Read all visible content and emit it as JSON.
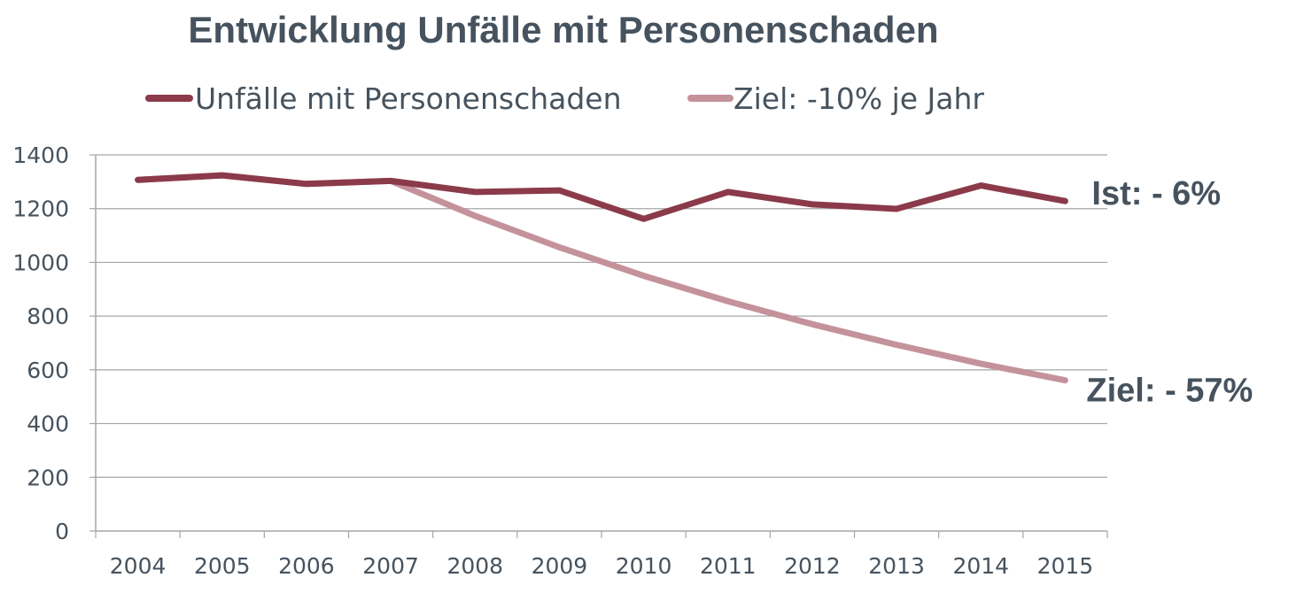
{
  "chart_data": {
    "type": "line",
    "title": "Entwicklung Unfälle mit Personenschaden",
    "xlabel": "",
    "ylabel": "",
    "categories": [
      "2004",
      "2005",
      "2006",
      "2007",
      "2008",
      "2009",
      "2010",
      "2011",
      "2012",
      "2013",
      "2014",
      "2015"
    ],
    "ylim": [
      0,
      1400
    ],
    "yticks": [
      0,
      200,
      400,
      600,
      800,
      1000,
      1200,
      1400
    ],
    "grid": true,
    "legend_position": "top",
    "series": [
      {
        "name": "Unfälle mit Personenschaden",
        "color": "#8B3A4A",
        "values": [
          1307,
          1324,
          1292,
          1303,
          1262,
          1268,
          1162,
          1262,
          1216,
          1199,
          1286,
          1228
        ]
      },
      {
        "name": "Ziel: -10% je Jahr",
        "color": "#C4929B",
        "values": [
          1307,
          1324,
          1292,
          1303,
          1173,
          1056,
          950,
          855,
          770,
          693,
          623,
          561
        ]
      }
    ],
    "annotations": [
      {
        "text": "Ist: - 6%",
        "series": 0,
        "category": "2015"
      },
      {
        "text": "Ziel: - 57%",
        "series": 1,
        "category": "2015"
      }
    ]
  }
}
